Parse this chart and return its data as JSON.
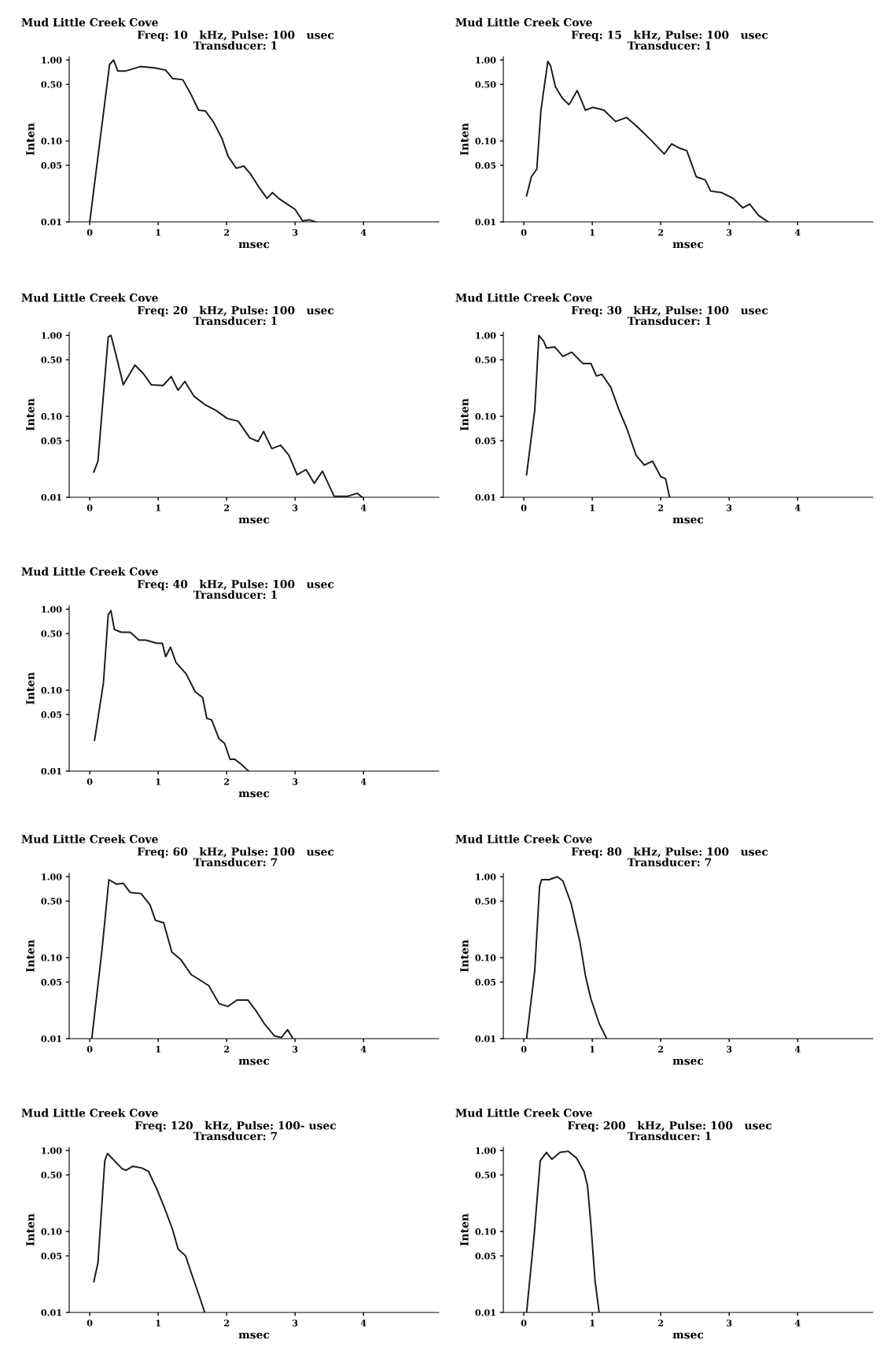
{
  "chart_data": [
    {
      "type": "line",
      "title": "Mud Little Creek Cove",
      "subtitle": "Freq: 10   kHz, Pulse: 100   usec\nTransducer: 1",
      "xlabel": "msec",
      "ylabel": "Inten",
      "log": "y",
      "xlim": [
        -0.3,
        5.1
      ],
      "ylim": [
        0.01,
        1.1
      ],
      "xticks": [
        0,
        1,
        2,
        3,
        4
      ],
      "yticks": [
        {
          "value": 0.01,
          "label": "0.01"
        },
        {
          "value": 0.05,
          "label": "0.05"
        },
        {
          "value": 0.1,
          "label": "0.10"
        },
        {
          "value": 0.5,
          "label": "0.50"
        },
        {
          "value": 1,
          "label": "1.00"
        }
      ],
      "grid": false,
      "marker": "none",
      "line_style": "solid",
      "color": "#1a1a1a",
      "x": [
        0,
        0.29,
        0.35,
        0.41,
        0.52,
        0.74,
        0.95,
        1.11,
        1.21,
        1.36,
        1.48,
        1.59,
        1.69,
        1.81,
        1.93,
        2.02,
        2.14,
        2.25,
        2.35,
        2.47,
        2.59,
        2.67,
        2.76,
        2.88,
        3.0,
        3.11,
        3.21,
        3.3
      ],
      "values": [
        0.01,
        0.88,
        1.0,
        0.73,
        0.73,
        0.83,
        0.8,
        0.75,
        0.59,
        0.57,
        0.375,
        0.24,
        0.235,
        0.17,
        0.108,
        0.065,
        0.046,
        0.049,
        0.039,
        0.027,
        0.0195,
        0.023,
        0.0195,
        0.0167,
        0.0143,
        0.0103,
        0.0106,
        0.01
      ]
    },
    {
      "type": "line",
      "title": "Mud Little Creek Cove",
      "subtitle": "Freq: 15   kHz, Pulse: 100   usec\nTransducer: 1",
      "xlabel": "msec",
      "ylabel": "Inten",
      "log": "y",
      "xlim": [
        -0.3,
        5.1
      ],
      "ylim": [
        0.01,
        1.1
      ],
      "xticks": [
        0,
        1,
        2,
        3,
        4
      ],
      "yticks": [
        {
          "value": 0.01,
          "label": "0.01"
        },
        {
          "value": 0.05,
          "label": "0.05"
        },
        {
          "value": 0.1,
          "label": "0.10"
        },
        {
          "value": 0.5,
          "label": "0.50"
        },
        {
          "value": 1,
          "label": "1.00"
        }
      ],
      "grid": false,
      "marker": "none",
      "line_style": "solid",
      "color": "#1a1a1a",
      "x": [
        0.04,
        0.11,
        0.19,
        0.25,
        0.35,
        0.39,
        0.46,
        0.56,
        0.66,
        0.78,
        0.9,
        1.01,
        1.17,
        1.34,
        1.5,
        1.66,
        1.87,
        2.05,
        2.16,
        2.28,
        2.38,
        2.52,
        2.65,
        2.73,
        2.89,
        3.06,
        3.2,
        3.3,
        3.43,
        3.57
      ],
      "values": [
        0.021,
        0.036,
        0.045,
        0.24,
        0.96,
        0.85,
        0.47,
        0.34,
        0.28,
        0.42,
        0.24,
        0.26,
        0.24,
        0.174,
        0.195,
        0.149,
        0.1,
        0.069,
        0.092,
        0.081,
        0.076,
        0.036,
        0.033,
        0.024,
        0.023,
        0.0195,
        0.0149,
        0.0166,
        0.012,
        0.01
      ]
    },
    {
      "type": "line",
      "title": "Mud Little Creek Cove",
      "subtitle": "Freq: 20   kHz, Pulse: 100   usec\nTransducer: 1",
      "xlabel": "msec",
      "ylabel": "Inten",
      "log": "y",
      "xlim": [
        -0.3,
        5.1
      ],
      "ylim": [
        0.01,
        1.1
      ],
      "xticks": [
        0,
        1,
        2,
        3,
        4
      ],
      "yticks": [
        {
          "value": 0.01,
          "label": "0.01"
        },
        {
          "value": 0.05,
          "label": "0.05"
        },
        {
          "value": 0.1,
          "label": "0.10"
        },
        {
          "value": 0.5,
          "label": "0.50"
        },
        {
          "value": 1,
          "label": "1.00"
        }
      ],
      "grid": false,
      "marker": "none",
      "line_style": "solid",
      "color": "#1a1a1a",
      "x": [
        0.06,
        0.12,
        0.27,
        0.31,
        0.37,
        0.49,
        0.66,
        0.78,
        0.9,
        1.07,
        1.19,
        1.29,
        1.39,
        1.52,
        1.68,
        1.84,
        2.01,
        2.17,
        2.34,
        2.46,
        2.54,
        2.66,
        2.79,
        2.91,
        3.03,
        3.16,
        3.28,
        3.4,
        3.57,
        3.77,
        3.91,
        3.98
      ],
      "values": [
        0.0205,
        0.028,
        0.96,
        1.0,
        0.64,
        0.245,
        0.43,
        0.34,
        0.245,
        0.24,
        0.31,
        0.21,
        0.27,
        0.178,
        0.14,
        0.119,
        0.094,
        0.087,
        0.054,
        0.049,
        0.065,
        0.04,
        0.044,
        0.033,
        0.019,
        0.022,
        0.0149,
        0.021,
        0.0103,
        0.0103,
        0.0112,
        0.01
      ]
    },
    {
      "type": "line",
      "title": "Mud Little Creek Cove",
      "subtitle": "Freq: 30   kHz, Pulse: 100   usec\nTransducer: 1",
      "xlabel": "msec",
      "ylabel": "Inten",
      "log": "y",
      "xlim": [
        -0.3,
        5.1
      ],
      "ylim": [
        0.01,
        1.1
      ],
      "xticks": [
        0,
        1,
        2,
        3,
        4
      ],
      "yticks": [
        {
          "value": 0.01,
          "label": "0.01"
        },
        {
          "value": 0.05,
          "label": "0.05"
        },
        {
          "value": 0.1,
          "label": "0.10"
        },
        {
          "value": 0.5,
          "label": "0.50"
        },
        {
          "value": 1,
          "label": "1.00"
        }
      ],
      "grid": false,
      "marker": "none",
      "line_style": "solid",
      "color": "#1a1a1a",
      "x": [
        0.04,
        0.16,
        0.22,
        0.29,
        0.33,
        0.45,
        0.57,
        0.7,
        0.86,
        0.98,
        1.06,
        1.14,
        1.27,
        1.39,
        1.51,
        1.64,
        1.76,
        1.88,
        2.0,
        2.07,
        2.13
      ],
      "values": [
        0.019,
        0.12,
        1.0,
        0.85,
        0.7,
        0.72,
        0.55,
        0.62,
        0.45,
        0.45,
        0.315,
        0.33,
        0.229,
        0.12,
        0.069,
        0.033,
        0.025,
        0.028,
        0.018,
        0.017,
        0.01
      ]
    },
    {
      "type": "line",
      "title": "Mud Little Creek Cove",
      "subtitle": "Freq: 40   kHz, Pulse: 100   usec\nTransducer: 1",
      "xlabel": "msec",
      "ylabel": "Inten",
      "log": "y",
      "xlim": [
        -0.3,
        5.1
      ],
      "ylim": [
        0.01,
        1.1
      ],
      "xticks": [
        0,
        1,
        2,
        3,
        4
      ],
      "yticks": [
        {
          "value": 0.01,
          "label": "0.01"
        },
        {
          "value": 0.05,
          "label": "0.05"
        },
        {
          "value": 0.1,
          "label": "0.10"
        },
        {
          "value": 0.5,
          "label": "0.50"
        },
        {
          "value": 1,
          "label": "1.00"
        }
      ],
      "grid": false,
      "marker": "none",
      "line_style": "solid",
      "color": "#1a1a1a",
      "x": [
        0.07,
        0.2,
        0.27,
        0.31,
        0.36,
        0.46,
        0.59,
        0.72,
        0.82,
        0.98,
        1.06,
        1.11,
        1.18,
        1.26,
        1.41,
        1.54,
        1.65,
        1.71,
        1.78,
        1.89,
        1.97,
        2.05,
        2.12,
        2.23,
        2.32
      ],
      "values": [
        0.024,
        0.123,
        0.85,
        0.96,
        0.56,
        0.52,
        0.52,
        0.415,
        0.415,
        0.38,
        0.38,
        0.26,
        0.34,
        0.22,
        0.158,
        0.096,
        0.081,
        0.045,
        0.043,
        0.025,
        0.022,
        0.014,
        0.014,
        0.0118,
        0.01
      ]
    },
    {
      "type": "line",
      "title": "Mud Little Creek Cove",
      "subtitle": "Freq: 60   kHz, Pulse: 100   usec\nTransducer: 7",
      "xlabel": "msec",
      "ylabel": "Inten",
      "log": "y",
      "xlim": [
        -0.3,
        5.1
      ],
      "ylim": [
        0.01,
        1.1
      ],
      "xticks": [
        0,
        1,
        2,
        3,
        4
      ],
      "yticks": [
        {
          "value": 0.01,
          "label": "0.01"
        },
        {
          "value": 0.05,
          "label": "0.05"
        },
        {
          "value": 0.1,
          "label": "0.10"
        },
        {
          "value": 0.5,
          "label": "0.50"
        },
        {
          "value": 1,
          "label": "1.00"
        }
      ],
      "grid": false,
      "marker": "none",
      "line_style": "solid",
      "color": "#1a1a1a",
      "x": [
        0.03,
        0.18,
        0.28,
        0.39,
        0.49,
        0.59,
        0.75,
        0.88,
        0.96,
        1.08,
        1.2,
        1.33,
        1.48,
        1.61,
        1.74,
        1.89,
        2.02,
        2.15,
        2.31,
        2.43,
        2.56,
        2.7,
        2.8,
        2.89,
        2.97
      ],
      "values": [
        0.01,
        0.127,
        0.92,
        0.81,
        0.83,
        0.64,
        0.62,
        0.45,
        0.29,
        0.27,
        0.117,
        0.095,
        0.062,
        0.053,
        0.045,
        0.027,
        0.025,
        0.03,
        0.03,
        0.022,
        0.0149,
        0.0108,
        0.0103,
        0.0129,
        0.01
      ]
    },
    {
      "type": "line",
      "title": "Mud Little Creek Cove",
      "subtitle": "Freq: 80   kHz, Pulse: 100   usec\nTransducer: 7",
      "xlabel": "msec",
      "ylabel": "Inten",
      "log": "y",
      "xlim": [
        -0.3,
        5.1
      ],
      "ylim": [
        0.01,
        1.1
      ],
      "xticks": [
        0,
        1,
        2,
        3,
        4
      ],
      "yticks": [
        {
          "value": 0.01,
          "label": "0.01"
        },
        {
          "value": 0.05,
          "label": "0.05"
        },
        {
          "value": 0.1,
          "label": "0.10"
        },
        {
          "value": 0.5,
          "label": "0.50"
        },
        {
          "value": 1,
          "label": "1.00"
        }
      ],
      "grid": false,
      "marker": "none",
      "line_style": "solid",
      "color": "#1a1a1a",
      "x": [
        0.04,
        0.16,
        0.23,
        0.26,
        0.37,
        0.49,
        0.57,
        0.69,
        0.82,
        0.9,
        0.98,
        1.1,
        1.21
      ],
      "values": [
        0.01,
        0.07,
        0.76,
        0.92,
        0.92,
        1.0,
        0.89,
        0.47,
        0.155,
        0.06,
        0.031,
        0.0154,
        0.01
      ]
    },
    {
      "type": "line",
      "title": "Mud Little Creek Cove",
      "subtitle": "Freq: 120   kHz, Pulse: 100- usec\nTransducer: 7",
      "xlabel": "msec",
      "ylabel": "Inten",
      "log": "y",
      "xlim": [
        -0.3,
        5.1
      ],
      "ylim": [
        0.01,
        1.1
      ],
      "xticks": [
        0,
        1,
        2,
        3,
        4
      ],
      "yticks": [
        {
          "value": 0.01,
          "label": "0.01"
        },
        {
          "value": 0.05,
          "label": "0.05"
        },
        {
          "value": 0.1,
          "label": "0.10"
        },
        {
          "value": 0.5,
          "label": "0.50"
        },
        {
          "value": 1,
          "label": "1.00"
        }
      ],
      "grid": false,
      "marker": "none",
      "line_style": "solid",
      "color": "#1a1a1a",
      "x": [
        0.06,
        0.12,
        0.22,
        0.26,
        0.36,
        0.47,
        0.53,
        0.63,
        0.76,
        0.86,
        0.99,
        1.09,
        1.21,
        1.29,
        1.4,
        1.5,
        1.6,
        1.68
      ],
      "values": [
        0.024,
        0.041,
        0.75,
        0.92,
        0.75,
        0.6,
        0.57,
        0.64,
        0.61,
        0.55,
        0.32,
        0.198,
        0.106,
        0.061,
        0.05,
        0.028,
        0.016,
        0.01
      ]
    },
    {
      "type": "line",
      "title": "Mud Little Creek Cove",
      "subtitle": "Freq: 200   kHz, Pulse: 100   usec\nTransducer: 1",
      "xlabel": "msec",
      "ylabel": "Inten",
      "log": "y",
      "xlim": [
        -0.3,
        5.1
      ],
      "ylim": [
        0.01,
        1.1
      ],
      "xticks": [
        0,
        1,
        2,
        3,
        4
      ],
      "yticks": [
        {
          "value": 0.01,
          "label": "0.01"
        },
        {
          "value": 0.05,
          "label": "0.05"
        },
        {
          "value": 0.1,
          "label": "0.10"
        },
        {
          "value": 0.5,
          "label": "0.50"
        },
        {
          "value": 1,
          "label": "1.00"
        }
      ],
      "grid": false,
      "marker": "none",
      "line_style": "solid",
      "color": "#1a1a1a",
      "x": [
        0.04,
        0.15,
        0.24,
        0.33,
        0.41,
        0.53,
        0.65,
        0.77,
        0.88,
        0.93,
        0.98,
        1.04,
        1.1
      ],
      "values": [
        0.01,
        0.089,
        0.75,
        0.95,
        0.78,
        0.95,
        0.98,
        0.81,
        0.55,
        0.37,
        0.122,
        0.025,
        0.01
      ]
    }
  ]
}
